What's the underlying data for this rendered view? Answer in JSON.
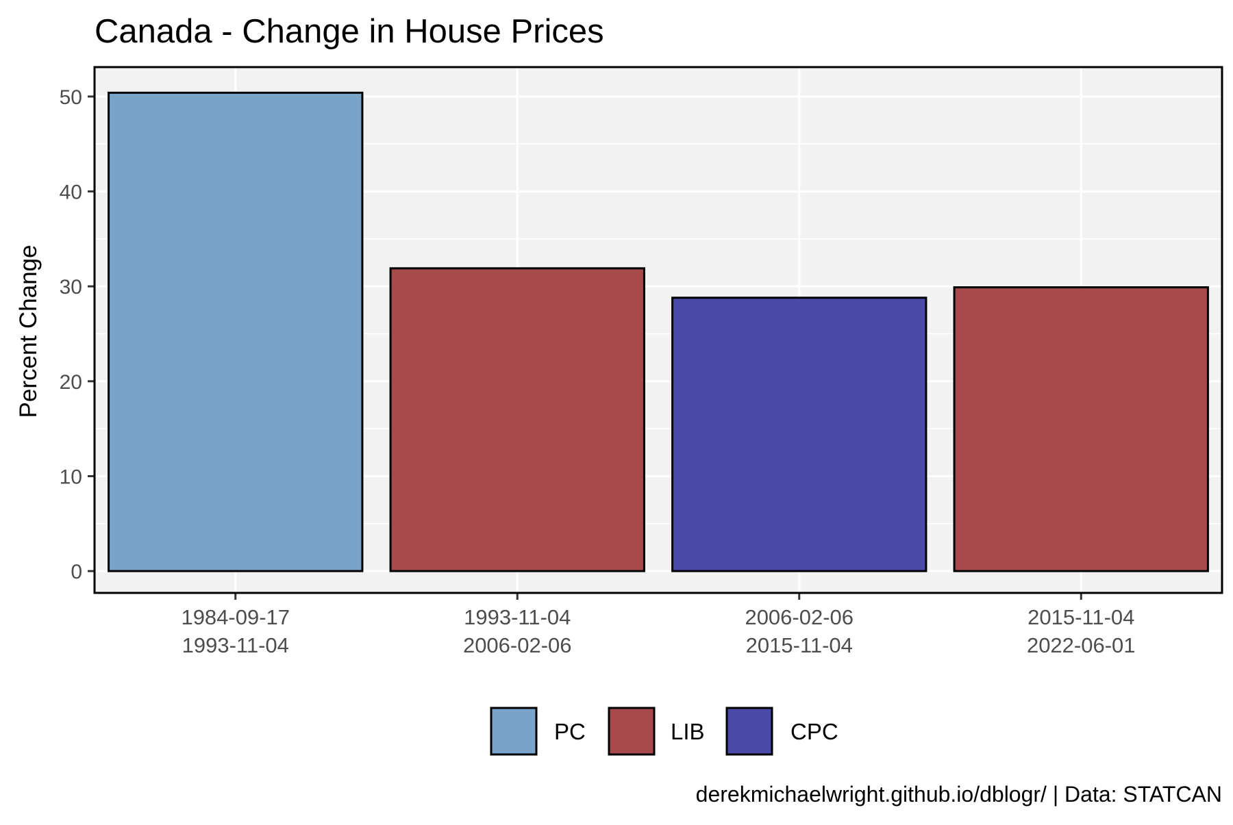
{
  "chart_data": {
    "type": "bar",
    "title": "Canada - Change in House Prices",
    "xlabel": "",
    "ylabel": "Percent Change",
    "categories": [
      [
        "1984-09-17",
        "1993-11-04"
      ],
      [
        "1993-11-04",
        "2006-02-06"
      ],
      [
        "2006-02-06",
        "2015-11-04"
      ],
      [
        "2015-11-04",
        "2022-06-01"
      ]
    ],
    "values": [
      50.4,
      31.9,
      28.8,
      29.9
    ],
    "parties": [
      "PC",
      "LIB",
      "CPC",
      "LIB"
    ],
    "ylim": [
      -2.3,
      53.1
    ],
    "yticks": [
      0,
      10,
      20,
      30,
      40,
      50
    ],
    "grid": true,
    "legend": {
      "placement": "bottom",
      "entries": [
        {
          "label": "PC",
          "color": "#79A4C9"
        },
        {
          "label": "LIB",
          "color": "#A74A4B"
        },
        {
          "label": "CPC",
          "color": "#4A4AA8"
        }
      ]
    },
    "caption": "derekmichaelwright.github.io/dblogr/ | Data: STATCAN"
  },
  "colors": {
    "panel_background": "#F2F2F2",
    "gridline": "#FFFFFF",
    "bar_outline": "#000000"
  }
}
